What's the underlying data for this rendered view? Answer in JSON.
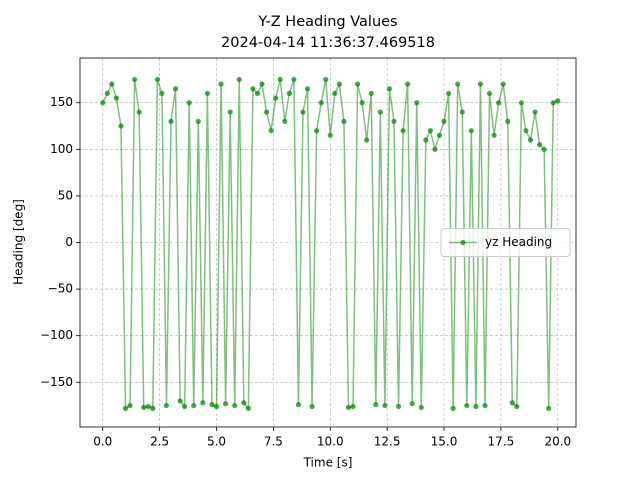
{
  "chart_data": {
    "type": "line",
    "title": "Y-Z Heading Values",
    "subtitle": "2024-04-14 11:36:37.469518",
    "x_label": "Time [s]",
    "y_label": "Heading [deg]",
    "xlim": [
      -1.0,
      20.8
    ],
    "ylim": [
      -198,
      198
    ],
    "xticks": [
      {
        "value": 0,
        "label": "0.0"
      },
      2.5,
      {
        "value": 5,
        "label": "5.0"
      },
      7.5,
      {
        "value": 10,
        "label": "10.0"
      },
      12.5,
      {
        "value": 15,
        "label": "15.0"
      },
      17.5,
      {
        "value": 20,
        "label": "20.0"
      }
    ],
    "yticks": [
      {
        "value": -150,
        "label": "−150"
      },
      {
        "value": -100,
        "label": "−100"
      },
      {
        "value": -50,
        "label": "−50"
      },
      0,
      50,
      100,
      150
    ],
    "grid": true,
    "legend_loc": "center right",
    "x": [
      0,
      0.2,
      0.4,
      0.6,
      0.8,
      1.0,
      1.2,
      1.4,
      1.6,
      1.8,
      2.0,
      2.2,
      2.4,
      2.6,
      2.8,
      3.0,
      3.2,
      3.4,
      3.6,
      3.8,
      4.0,
      4.2,
      4.4,
      4.6,
      4.8,
      5.0,
      5.2,
      5.4,
      5.6,
      5.8,
      6.0,
      6.2,
      6.4,
      6.6,
      6.8,
      7.0,
      7.2,
      7.4,
      7.6,
      7.8,
      8.0,
      8.2,
      8.4,
      8.6,
      8.8,
      9.0,
      9.2,
      9.4,
      9.6,
      9.8,
      10.0,
      10.2,
      10.4,
      10.6,
      10.8,
      11.0,
      11.2,
      11.4,
      11.6,
      11.8,
      12.0,
      12.2,
      12.4,
      12.6,
      12.8,
      13.0,
      13.2,
      13.4,
      13.6,
      13.8,
      14.0,
      14.2,
      14.4,
      14.6,
      14.8,
      15.0,
      15.2,
      15.4,
      15.6,
      15.8,
      16.0,
      16.2,
      16.4,
      16.6,
      16.8,
      17.0,
      17.2,
      17.4,
      17.6,
      17.8,
      18.0,
      18.2,
      18.4,
      18.6,
      18.8,
      19.0,
      19.2,
      19.4,
      19.6,
      19.8,
      20.0
    ],
    "series": [
      {
        "name": "yz Heading",
        "color": "#008000",
        "values": [
          150,
          160,
          170,
          155,
          125,
          -178,
          -175,
          175,
          140,
          -177,
          -176,
          -178,
          175,
          160,
          -175,
          130,
          165,
          -170,
          -176,
          150,
          -175,
          130,
          -172,
          160,
          -174,
          -176,
          170,
          -173,
          140,
          -175,
          175,
          -172,
          -178,
          165,
          160,
          170,
          140,
          120,
          155,
          175,
          130,
          160,
          175,
          -174,
          140,
          165,
          -176,
          120,
          150,
          175,
          115,
          160,
          170,
          130,
          -177,
          -176,
          170,
          150,
          110,
          160,
          -174,
          140,
          -175,
          165,
          130,
          -176,
          120,
          170,
          -173,
          150,
          -177,
          110,
          120,
          100,
          115,
          130,
          160,
          -178,
          170,
          140,
          -175,
          120,
          -176,
          170,
          -175,
          160,
          115,
          150,
          170,
          130,
          -172,
          -176,
          150,
          120,
          110,
          140,
          105,
          100,
          -178,
          150,
          152
        ]
      }
    ]
  }
}
